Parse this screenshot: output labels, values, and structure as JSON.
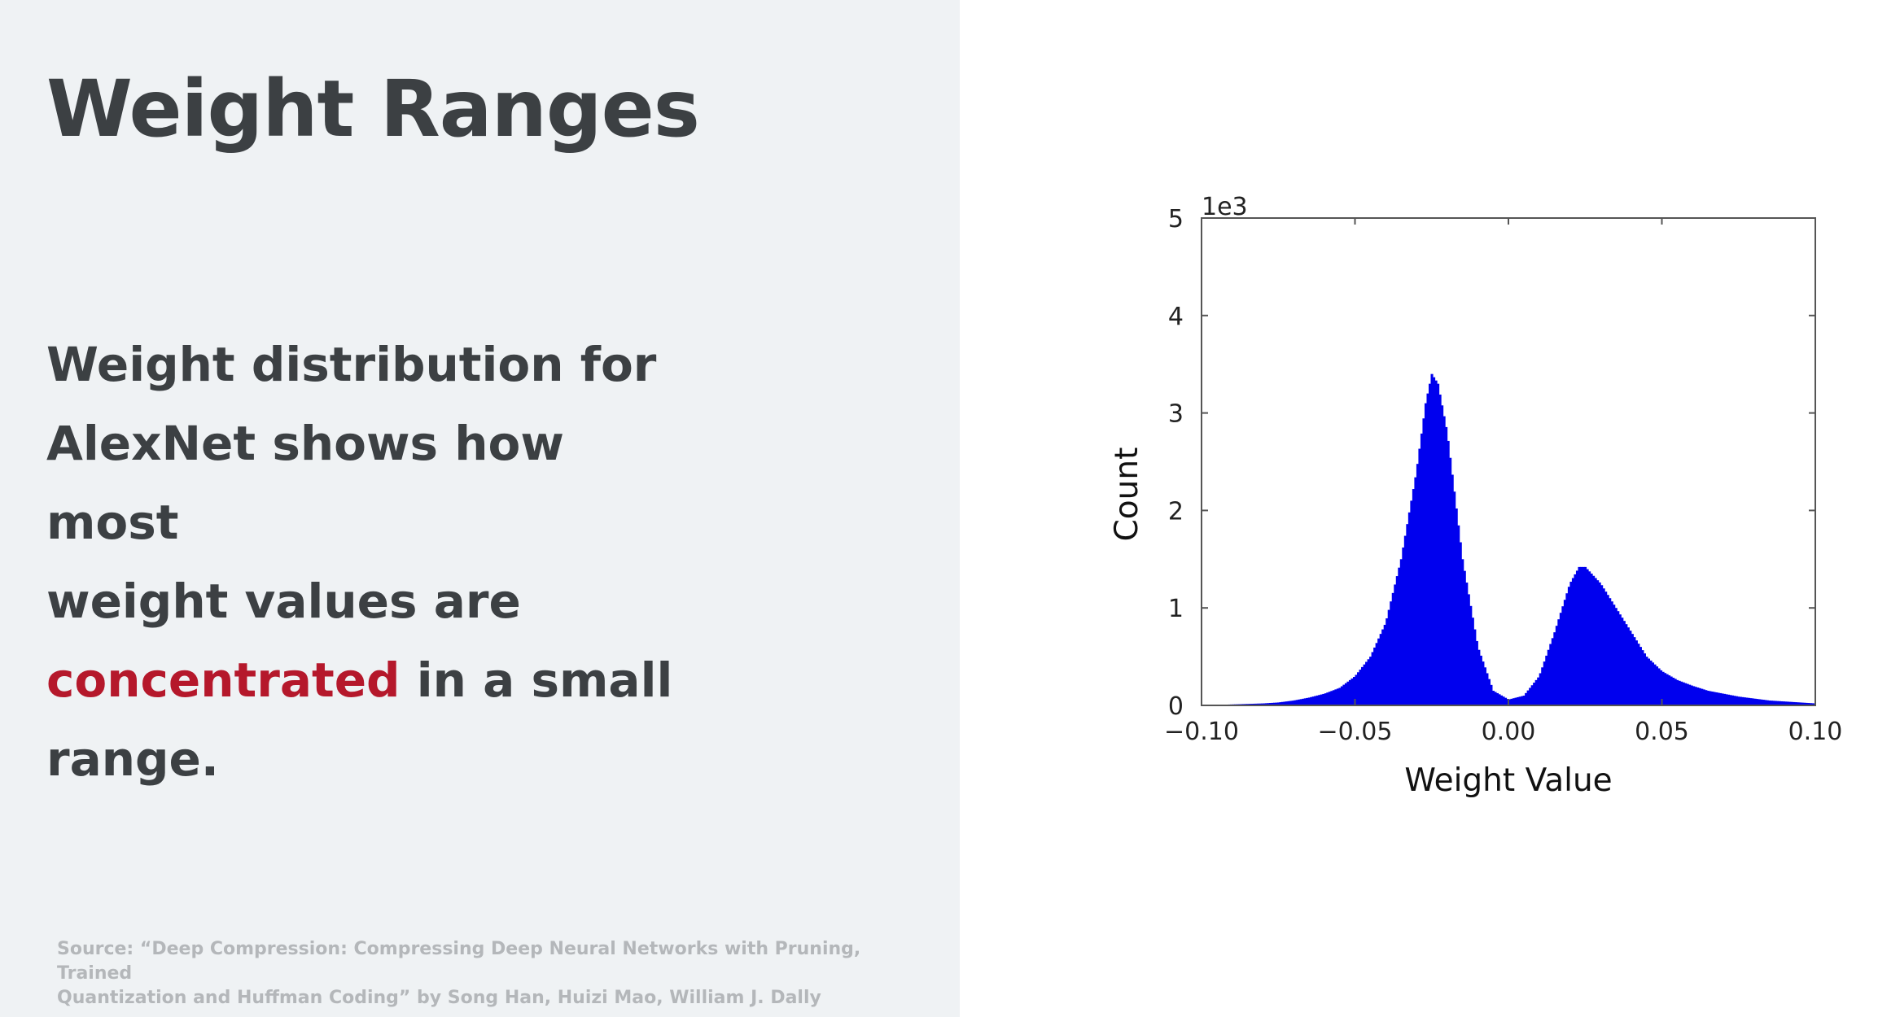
{
  "slide": {
    "title": "Weight Ranges",
    "body_line1": "Weight distribution for",
    "body_line2": "AlexNet shows how most",
    "body_line3": "weight values are",
    "body_highlight": "concentrated",
    "body_after_highlight": " in a small",
    "body_line5": "range.",
    "source_line1": "Source: “Deep Compression: Compressing Deep Neural Networks with Pruning, Trained",
    "source_line2": "Quantization and Huffman Coding” by Song Han, Huizi Mao, William J. Dally",
    "highlight_color": "#b5182b",
    "text_color": "#3c4043",
    "panel_color": "#eff2f4"
  },
  "chart_data": {
    "type": "bar",
    "title": "",
    "xlabel": "Weight Value",
    "ylabel": "Count",
    "y_scale_note": "1e3",
    "xlim": [
      -0.1,
      0.1
    ],
    "ylim": [
      0,
      5
    ],
    "x_ticks": [
      -0.1,
      -0.05,
      0.0,
      0.05,
      0.1
    ],
    "x_tick_labels": [
      "−0.10",
      "−0.05",
      "0.00",
      "0.05",
      "0.10"
    ],
    "y_ticks": [
      0,
      1,
      2,
      3,
      4,
      5
    ],
    "y_tick_labels": [
      "0",
      "1",
      "2",
      "3",
      "4",
      "5"
    ],
    "bar_color": "#0000ee",
    "grid": false,
    "x": [
      -0.1,
      -0.095,
      -0.09,
      -0.085,
      -0.08,
      -0.075,
      -0.07,
      -0.065,
      -0.06,
      -0.055,
      -0.05,
      -0.045,
      -0.04,
      -0.035,
      -0.03,
      -0.027,
      -0.025,
      -0.023,
      -0.02,
      -0.015,
      -0.01,
      -0.005,
      0.0,
      0.005,
      0.01,
      0.015,
      0.02,
      0.023,
      0.025,
      0.03,
      0.035,
      0.04,
      0.045,
      0.05,
      0.055,
      0.06,
      0.065,
      0.07,
      0.075,
      0.08,
      0.085,
      0.09,
      0.095,
      0.1
    ],
    "values": [
      0.0,
      0.005,
      0.01,
      0.015,
      0.02,
      0.03,
      0.05,
      0.08,
      0.12,
      0.18,
      0.3,
      0.5,
      0.85,
      1.5,
      2.4,
      3.1,
      3.4,
      3.3,
      2.8,
      1.5,
      0.6,
      0.15,
      0.06,
      0.1,
      0.3,
      0.75,
      1.25,
      1.42,
      1.42,
      1.25,
      1.0,
      0.75,
      0.5,
      0.35,
      0.26,
      0.2,
      0.15,
      0.12,
      0.09,
      0.07,
      0.05,
      0.04,
      0.03,
      0.02
    ]
  }
}
